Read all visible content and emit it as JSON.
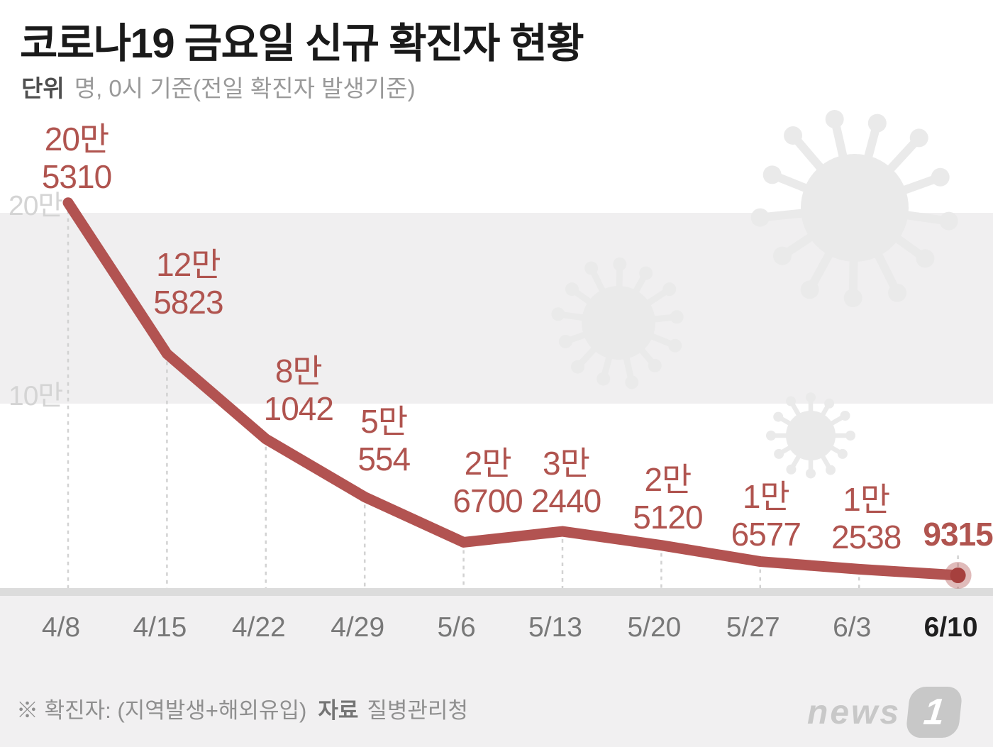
{
  "title": "코로나19 금요일 신규 확진자 현황",
  "subtitle": {
    "label": "단위",
    "text": "명, 0시 기준(전일 확진자 발생기준)"
  },
  "chart_data": {
    "type": "line",
    "title": "코로나19 금요일 신규 확진자 현황",
    "categories": [
      "4/8",
      "4/15",
      "4/22",
      "4/29",
      "5/6",
      "5/13",
      "5/20",
      "5/27",
      "6/3",
      "6/10"
    ],
    "values": [
      205310,
      125823,
      81042,
      50554,
      26700,
      32440,
      25120,
      16577,
      12538,
      9315
    ],
    "point_labels": [
      [
        "20만",
        "5310"
      ],
      [
        "12만",
        "5823"
      ],
      [
        "8만",
        "1042"
      ],
      [
        "5만",
        "554"
      ],
      [
        "2만",
        "6700"
      ],
      [
        "3만",
        "2440"
      ],
      [
        "2만",
        "5120"
      ],
      [
        "1만",
        "6577"
      ],
      [
        "1만",
        "2538"
      ],
      [
        "9315"
      ]
    ],
    "yticks": [
      {
        "label": "20만",
        "value": 200000
      },
      {
        "label": "10만",
        "value": 100000
      }
    ],
    "ylim": [
      0,
      215000
    ],
    "xlabel": "",
    "ylabel": "명",
    "legend": "none",
    "grid": "vertical dashed line per data point; shaded horizontal band between 100000 and 200000",
    "highlight_last_point": true,
    "decorations": "three light-gray coronavirus silhouettes in background"
  },
  "colors": {
    "line": "#b25351",
    "point_label": "#b0544f",
    "marker_dot": "#a6403e",
    "marker_halo": "rgba(178,85,82,0.40)",
    "band": "#f0eff0",
    "axis_bar": "#dcdcdc",
    "footer_bg": "#f1f0f1",
    "virus": "#eaeaea",
    "grid_dash": "#d2d2d2",
    "ytick": "#d4d4d4",
    "xtick": "#787878",
    "xtick_highlight": "#1f1f1f",
    "title": "#1a1a1a",
    "subtitle_label": "#4f4f4f",
    "subtitle_text": "#999999",
    "footnote": "#8f8f8f",
    "footnote_bold": "#757575",
    "logo": "#c8c8c8"
  },
  "footnote": {
    "note": "※ 확진자: (지역발생+해외유입)",
    "source_label": "자료",
    "source": "질병관리청"
  },
  "logo": {
    "text": "news",
    "badge": "1"
  }
}
